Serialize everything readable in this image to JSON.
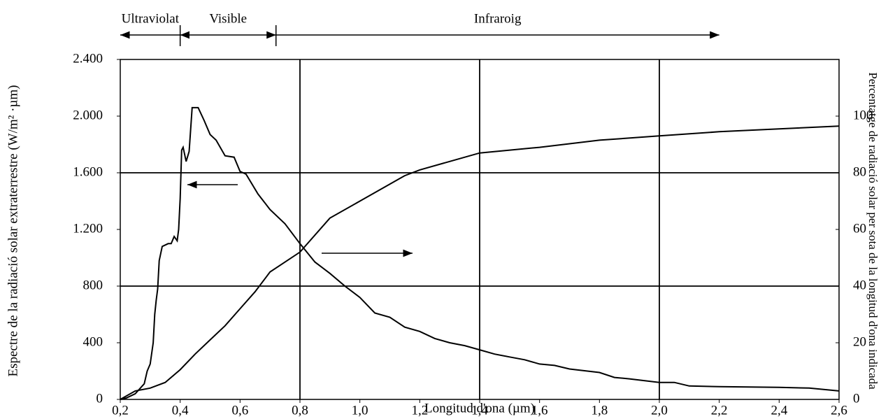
{
  "chart_data": {
    "type": "line",
    "x_label": "Longitud d'ona (µm)",
    "y_label": "Espectre de la radiació solar extraterrestre  (W/m² ·µm)",
    "y2_label": "Percentatge de radiació solar per sota de la longitud d'ona indicada",
    "xlim": [
      0.2,
      2.6
    ],
    "xticks": [
      {
        "value": 0.2,
        "label": "0,2"
      },
      {
        "value": 0.4,
        "label": "0,4"
      },
      {
        "value": 0.6,
        "label": "0,6"
      },
      {
        "value": 0.8,
        "label": "0,8"
      },
      {
        "value": 1.0,
        "label": "1,0"
      },
      {
        "value": 1.2,
        "label": "1,2"
      },
      {
        "value": 1.4,
        "label": "1,4"
      },
      {
        "value": 1.6,
        "label": "1,6"
      },
      {
        "value": 1.8,
        "label": "1,8"
      },
      {
        "value": 2.0,
        "label": "2,0"
      },
      {
        "value": 2.2,
        "label": "2,2"
      },
      {
        "value": 2.4,
        "label": "2,4"
      },
      {
        "value": 2.6,
        "label": "2,6"
      }
    ],
    "ylim": [
      0,
      2400
    ],
    "yticks": [
      0,
      400,
      800,
      {
        "value": 1200,
        "label": "1.200"
      },
      {
        "value": 1600,
        "label": "1.600"
      },
      {
        "value": 2000,
        "label": "2.000"
      },
      {
        "value": 2400,
        "label": "2.400"
      }
    ],
    "y2lim": [
      0,
      120
    ],
    "y2ticks": [
      0,
      20,
      40,
      60,
      80,
      100
    ],
    "xgrid": [
      0.8,
      1.4,
      2.0
    ],
    "ygrid": [
      800,
      1600
    ],
    "regions": [
      {
        "label": "Ultraviolat",
        "from": 0.2,
        "to": 0.4
      },
      {
        "label": "Visible",
        "from": 0.4,
        "to": 0.72
      },
      {
        "label": "Infraroig",
        "from": 0.72,
        "to": 2.2
      }
    ],
    "series": [
      {
        "color": "#000000",
        "x": [
          0.2,
          0.22,
          0.25,
          0.28,
          0.29,
          0.3,
          0.31,
          0.315,
          0.32,
          0.325,
          0.33,
          0.34,
          0.36,
          0.37,
          0.38,
          0.39,
          0.395,
          0.4,
          0.405,
          0.41,
          0.42,
          0.43,
          0.44,
          0.46,
          0.48,
          0.5,
          0.52,
          0.55,
          0.58,
          0.6,
          0.62,
          0.66,
          0.7,
          0.75,
          0.8,
          0.85,
          0.9,
          0.95,
          1.0,
          1.05,
          1.1,
          1.15,
          1.2,
          1.25,
          1.3,
          1.35,
          1.4,
          1.45,
          1.5,
          1.55,
          1.6,
          1.65,
          1.7,
          1.8,
          1.85,
          1.9,
          2.0,
          2.05,
          2.1,
          2.2,
          2.4,
          2.5,
          2.6
        ],
        "values": [
          0,
          10,
          40,
          110,
          200,
          250,
          400,
          600,
          700,
          780,
          980,
          1080,
          1100,
          1100,
          1150,
          1120,
          1200,
          1420,
          1760,
          1780,
          1680,
          1750,
          2060,
          2060,
          1970,
          1870,
          1830,
          1720,
          1710,
          1610,
          1590,
          1450,
          1340,
          1240,
          1100,
          970,
          890,
          800,
          720,
          610,
          580,
          510,
          480,
          430,
          400,
          380,
          350,
          320,
          300,
          280,
          250,
          240,
          215,
          190,
          155,
          145,
          120,
          120,
          95,
          90,
          85,
          80,
          60
        ]
      },
      {
        "color": "#000000",
        "axis": "y2",
        "x": [
          0.2,
          0.25,
          0.3,
          0.35,
          0.4,
          0.45,
          0.5,
          0.55,
          0.6,
          0.65,
          0.7,
          0.8,
          0.9,
          1.0,
          1.1,
          1.15,
          1.2,
          1.3,
          1.4,
          1.6,
          1.8,
          2.0,
          2.2,
          2.4,
          2.6
        ],
        "values": [
          0,
          3,
          4,
          6,
          10.5,
          16,
          21,
          26,
          32,
          38,
          45,
          52,
          64,
          70,
          76,
          79,
          81,
          84,
          87,
          89,
          91.5,
          93,
          94.5,
          95.5,
          96.5
        ]
      }
    ]
  }
}
